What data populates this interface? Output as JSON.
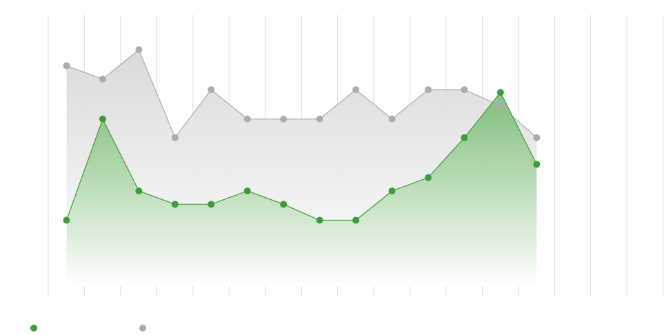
{
  "chart_data": {
    "type": "area",
    "title": "",
    "xlabel": "",
    "ylabel": "",
    "grid": true,
    "legend_position": "bottom-left",
    "x": [
      1,
      2,
      3,
      4,
      5,
      6,
      7,
      8,
      9,
      10,
      11,
      12,
      13,
      14
    ],
    "ylim": [
      0,
      100
    ],
    "series": [
      {
        "color": "#3a9e35",
        "values": [
          26,
          64,
          37,
          32,
          32,
          37,
          32,
          26,
          26,
          37,
          42,
          57,
          74,
          47
        ]
      },
      {
        "color": "#acacac",
        "values": [
          84,
          79,
          90,
          57,
          75,
          64,
          64,
          64,
          75,
          64,
          75,
          75,
          69,
          57
        ]
      }
    ]
  }
}
